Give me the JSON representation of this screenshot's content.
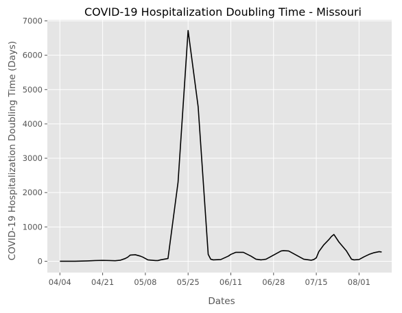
{
  "chart_data": {
    "type": "line",
    "title": "COVID-19 Hospitalization Doubling Time - Missouri",
    "xlabel": "Dates",
    "ylabel": "COVID-19 Hospitalization Doubling Time (Days)",
    "x_tick_labels": [
      "04/04",
      "04/21",
      "05/08",
      "05/25",
      "06/11",
      "06/28",
      "07/15",
      "08/01"
    ],
    "x_tick_day_index": [
      0,
      17,
      34,
      51,
      68,
      85,
      102,
      119
    ],
    "y_ticks": [
      0,
      1000,
      2000,
      3000,
      4000,
      5000,
      6000,
      7000
    ],
    "y_tick_labels": [
      "0",
      "1000",
      "2000",
      "3000",
      "4000",
      "5000",
      "6000",
      "7000"
    ],
    "ylim": [
      -330,
      7030
    ],
    "grid": true,
    "background": "#e5e5e5",
    "grid_color": "#ffffff",
    "line_color": "#000000",
    "series": [
      {
        "x": [
          0,
          6,
          11,
          14,
          17,
          20,
          22,
          24,
          26,
          27,
          28,
          30,
          32,
          33,
          35,
          38,
          39,
          40,
          43,
          47,
          51,
          55,
          59,
          60,
          61,
          64,
          67,
          68,
          70,
          73,
          76,
          78,
          80,
          82,
          85,
          88,
          89,
          91,
          94,
          97,
          100,
          101,
          102,
          103,
          105,
          107,
          108,
          109,
          111,
          114,
          116,
          117,
          119,
          121,
          123,
          125,
          127,
          128
        ],
        "y": [
          0,
          0,
          10,
          20,
          25,
          20,
          15,
          30,
          80,
          120,
          180,
          190,
          150,
          120,
          40,
          20,
          20,
          40,
          80,
          2300,
          6720,
          4500,
          200,
          60,
          40,
          50,
          150,
          200,
          260,
          260,
          150,
          60,
          40,
          60,
          180,
          300,
          310,
          300,
          180,
          60,
          30,
          50,
          100,
          280,
          480,
          630,
          720,
          780,
          560,
          300,
          60,
          40,
          50,
          130,
          200,
          250,
          280,
          270
        ]
      }
    ]
  }
}
